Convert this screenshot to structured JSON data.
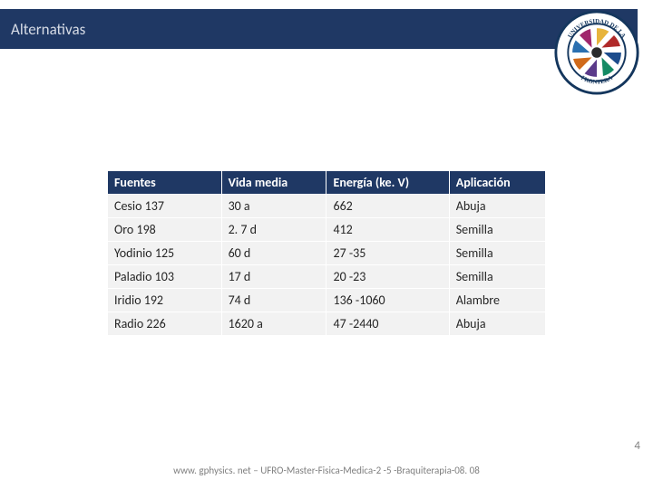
{
  "header": {
    "title": "Alternativas"
  },
  "logo": {
    "ring_text_top": "UNIVERSIDAD DE LA",
    "ring_text_bottom": "FRONTERA",
    "colors": {
      "ring_border": "#14365d",
      "ring_text": "#14365d",
      "spokes": [
        "#e7b43c",
        "#b02a2a",
        "#1c4c8c",
        "#148a64",
        "#5b3a8a",
        "#d06a1a",
        "#2a6fb0",
        "#a0266c"
      ],
      "hub": "#2b2b2b"
    }
  },
  "table": {
    "type": "table",
    "header_bg": "#1f3864",
    "header_fg": "#ffffff",
    "body_bg": "#f2f2f2",
    "body_fg": "#262626",
    "border_color": "#ffffff",
    "font_size": 14,
    "columns": [
      "Fuentes",
      "Vida media",
      "Energía (ke. V)",
      "Aplicación"
    ],
    "rows": [
      [
        "Cesio 137",
        "30 a",
        "662",
        "Abuja"
      ],
      [
        "Oro 198",
        "2. 7 d",
        "412",
        "Semilla"
      ],
      [
        "Yodinio 125",
        "60 d",
        "27 -35",
        "Semilla"
      ],
      [
        "Paladio 103",
        "17 d",
        "20 -23",
        "Semilla"
      ],
      [
        "Iridio 192",
        "74 d",
        "136 -1060",
        "Alambre"
      ],
      [
        "Radio 226",
        "1620 a",
        "47 -2440",
        "Abuja"
      ]
    ]
  },
  "footer": {
    "text": "www. gphysics. net – UFRO-Master-Fisica-Medica-2 -5 -Braquiterapia-08. 08"
  },
  "pagenum": "4"
}
